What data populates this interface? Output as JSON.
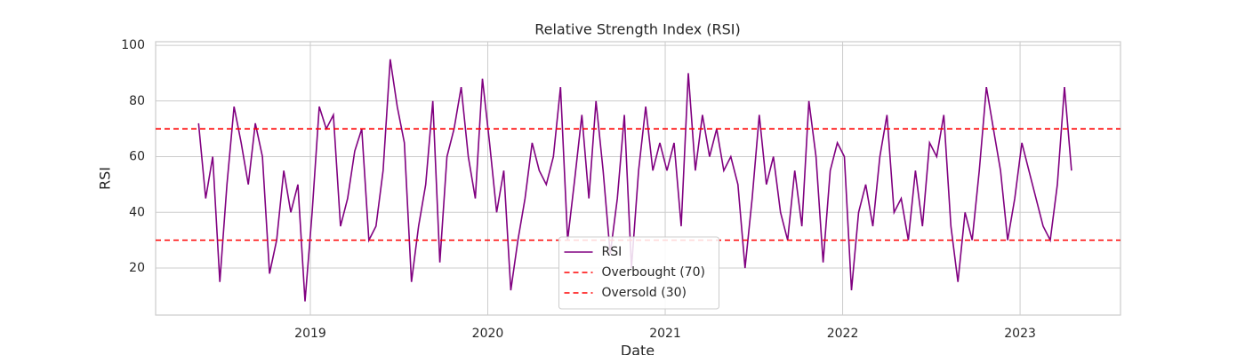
{
  "chart_data": {
    "type": "line",
    "title": "Relative Strength Index (RSI)",
    "x_label": "Date",
    "y_label": "RSI",
    "x": [
      2018.37,
      2018.41,
      2018.45,
      2018.49,
      2018.53,
      2018.57,
      2018.61,
      2018.65,
      2018.69,
      2018.73,
      2018.77,
      2018.81,
      2018.85,
      2018.89,
      2018.93,
      2018.97,
      2019.01,
      2019.05,
      2019.09,
      2019.13,
      2019.17,
      2019.21,
      2019.25,
      2019.29,
      2019.33,
      2019.37,
      2019.41,
      2019.45,
      2019.49,
      2019.53,
      2019.57,
      2019.61,
      2019.65,
      2019.69,
      2019.73,
      2019.77,
      2019.81,
      2019.85,
      2019.89,
      2019.93,
      2019.97,
      2020.01,
      2020.05,
      2020.09,
      2020.13,
      2020.17,
      2020.21,
      2020.25,
      2020.29,
      2020.33,
      2020.37,
      2020.41,
      2020.45,
      2020.49,
      2020.53,
      2020.57,
      2020.61,
      2020.65,
      2020.69,
      2020.73,
      2020.77,
      2020.81,
      2020.85,
      2020.89,
      2020.93,
      2020.97,
      2021.01,
      2021.05,
      2021.09,
      2021.13,
      2021.17,
      2021.21,
      2021.25,
      2021.29,
      2021.33,
      2021.37,
      2021.41,
      2021.45,
      2021.49,
      2021.53,
      2021.57,
      2021.61,
      2021.65,
      2021.69,
      2021.73,
      2021.77,
      2021.81,
      2021.85,
      2021.89,
      2021.93,
      2021.97,
      2022.01,
      2022.05,
      2022.09,
      2022.13,
      2022.17,
      2022.21,
      2022.25,
      2022.29,
      2022.33,
      2022.37,
      2022.41,
      2022.45,
      2022.49,
      2022.53,
      2022.57,
      2022.61,
      2022.65,
      2022.69,
      2022.73,
      2022.77,
      2022.81,
      2022.85,
      2022.89,
      2022.93,
      2022.97,
      2023.01,
      2023.05,
      2023.09,
      2023.13,
      2023.17,
      2023.21,
      2023.25,
      2023.29
    ],
    "series": [
      {
        "name": "RSI",
        "color": "purple",
        "values": [
          72,
          45,
          60,
          15,
          50,
          78,
          65,
          50,
          72,
          60,
          18,
          30,
          55,
          40,
          50,
          8,
          40,
          78,
          70,
          75,
          35,
          45,
          62,
          70,
          30,
          35,
          55,
          95,
          78,
          65,
          15,
          35,
          50,
          80,
          22,
          60,
          70,
          85,
          60,
          45,
          88,
          65,
          40,
          55,
          12,
          30,
          45,
          65,
          55,
          50,
          60,
          85,
          30,
          52,
          75,
          45,
          80,
          55,
          25,
          45,
          75,
          20,
          55,
          78,
          55,
          65,
          55,
          65,
          35,
          90,
          55,
          75,
          60,
          70,
          55,
          60,
          50,
          20,
          45,
          75,
          50,
          60,
          40,
          30,
          55,
          35,
          80,
          60,
          22,
          55,
          65,
          60,
          12,
          40,
          50,
          35,
          60,
          75,
          40,
          45,
          30,
          55,
          35,
          65,
          60,
          75,
          35,
          15,
          40,
          30,
          55,
          85,
          70,
          55,
          30,
          45,
          65,
          55,
          45,
          35,
          30,
          50,
          85,
          55
        ]
      }
    ],
    "hlines": [
      {
        "name": "Overbought (70)",
        "value": 70,
        "color": "red"
      },
      {
        "name": "Oversold (30)",
        "value": 30,
        "color": "red"
      }
    ],
    "xlim": [
      2018.128,
      2023.566
    ],
    "ylim": [
      3.1,
      101.3
    ],
    "xticks": [
      2019,
      2020,
      2021,
      2022,
      2023
    ],
    "yticks": [
      20,
      40,
      60,
      80,
      100
    ],
    "grid": true,
    "legend": "lower center"
  }
}
